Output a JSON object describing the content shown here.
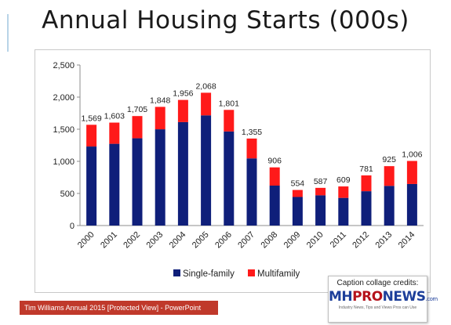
{
  "slide": {
    "title": "Annual Housing Starts (000s)"
  },
  "chart_data": {
    "type": "bar",
    "stacked": true,
    "categories": [
      "2000",
      "2001",
      "2002",
      "2003",
      "2004",
      "2005",
      "2006",
      "2007",
      "2008",
      "2009",
      "2010",
      "2011",
      "2012",
      "2013",
      "2014"
    ],
    "series": [
      {
        "name": "Single-family",
        "color": "#0f1f7a",
        "values": [
          1231,
          1273,
          1359,
          1499,
          1611,
          1716,
          1465,
          1046,
          622,
          445,
          471,
          431,
          535,
          618,
          647
        ]
      },
      {
        "name": "Multifamily",
        "color": "#ff1a1a",
        "values": [
          338,
          330,
          346,
          349,
          345,
          352,
          336,
          309,
          284,
          109,
          116,
          178,
          246,
          307,
          359
        ]
      }
    ],
    "totals": [
      "1,569",
      "1,603",
      "1,705",
      "1,848",
      "1,956",
      "2,068",
      "1,801",
      "1,355",
      "906",
      "554",
      "587",
      "609",
      "781",
      "925",
      "1,006"
    ],
    "yticks": [
      "0",
      "500",
      "1,000",
      "1,500",
      "2,000",
      "2,500"
    ],
    "ylim": [
      0,
      2500
    ],
    "grid": false,
    "legend_position": "bottom"
  },
  "taskbar": {
    "label": "Tim Williams Annual 2015 [Protected View]  -  PowerPoint"
  },
  "credit": {
    "caption": "Caption collage credits:",
    "logo_mh": "MH",
    "logo_pro": "PRO",
    "logo_news": "NEWS",
    "logo_com": ".com",
    "tagline": "Industry News, Tips and Views Pros can Use"
  }
}
